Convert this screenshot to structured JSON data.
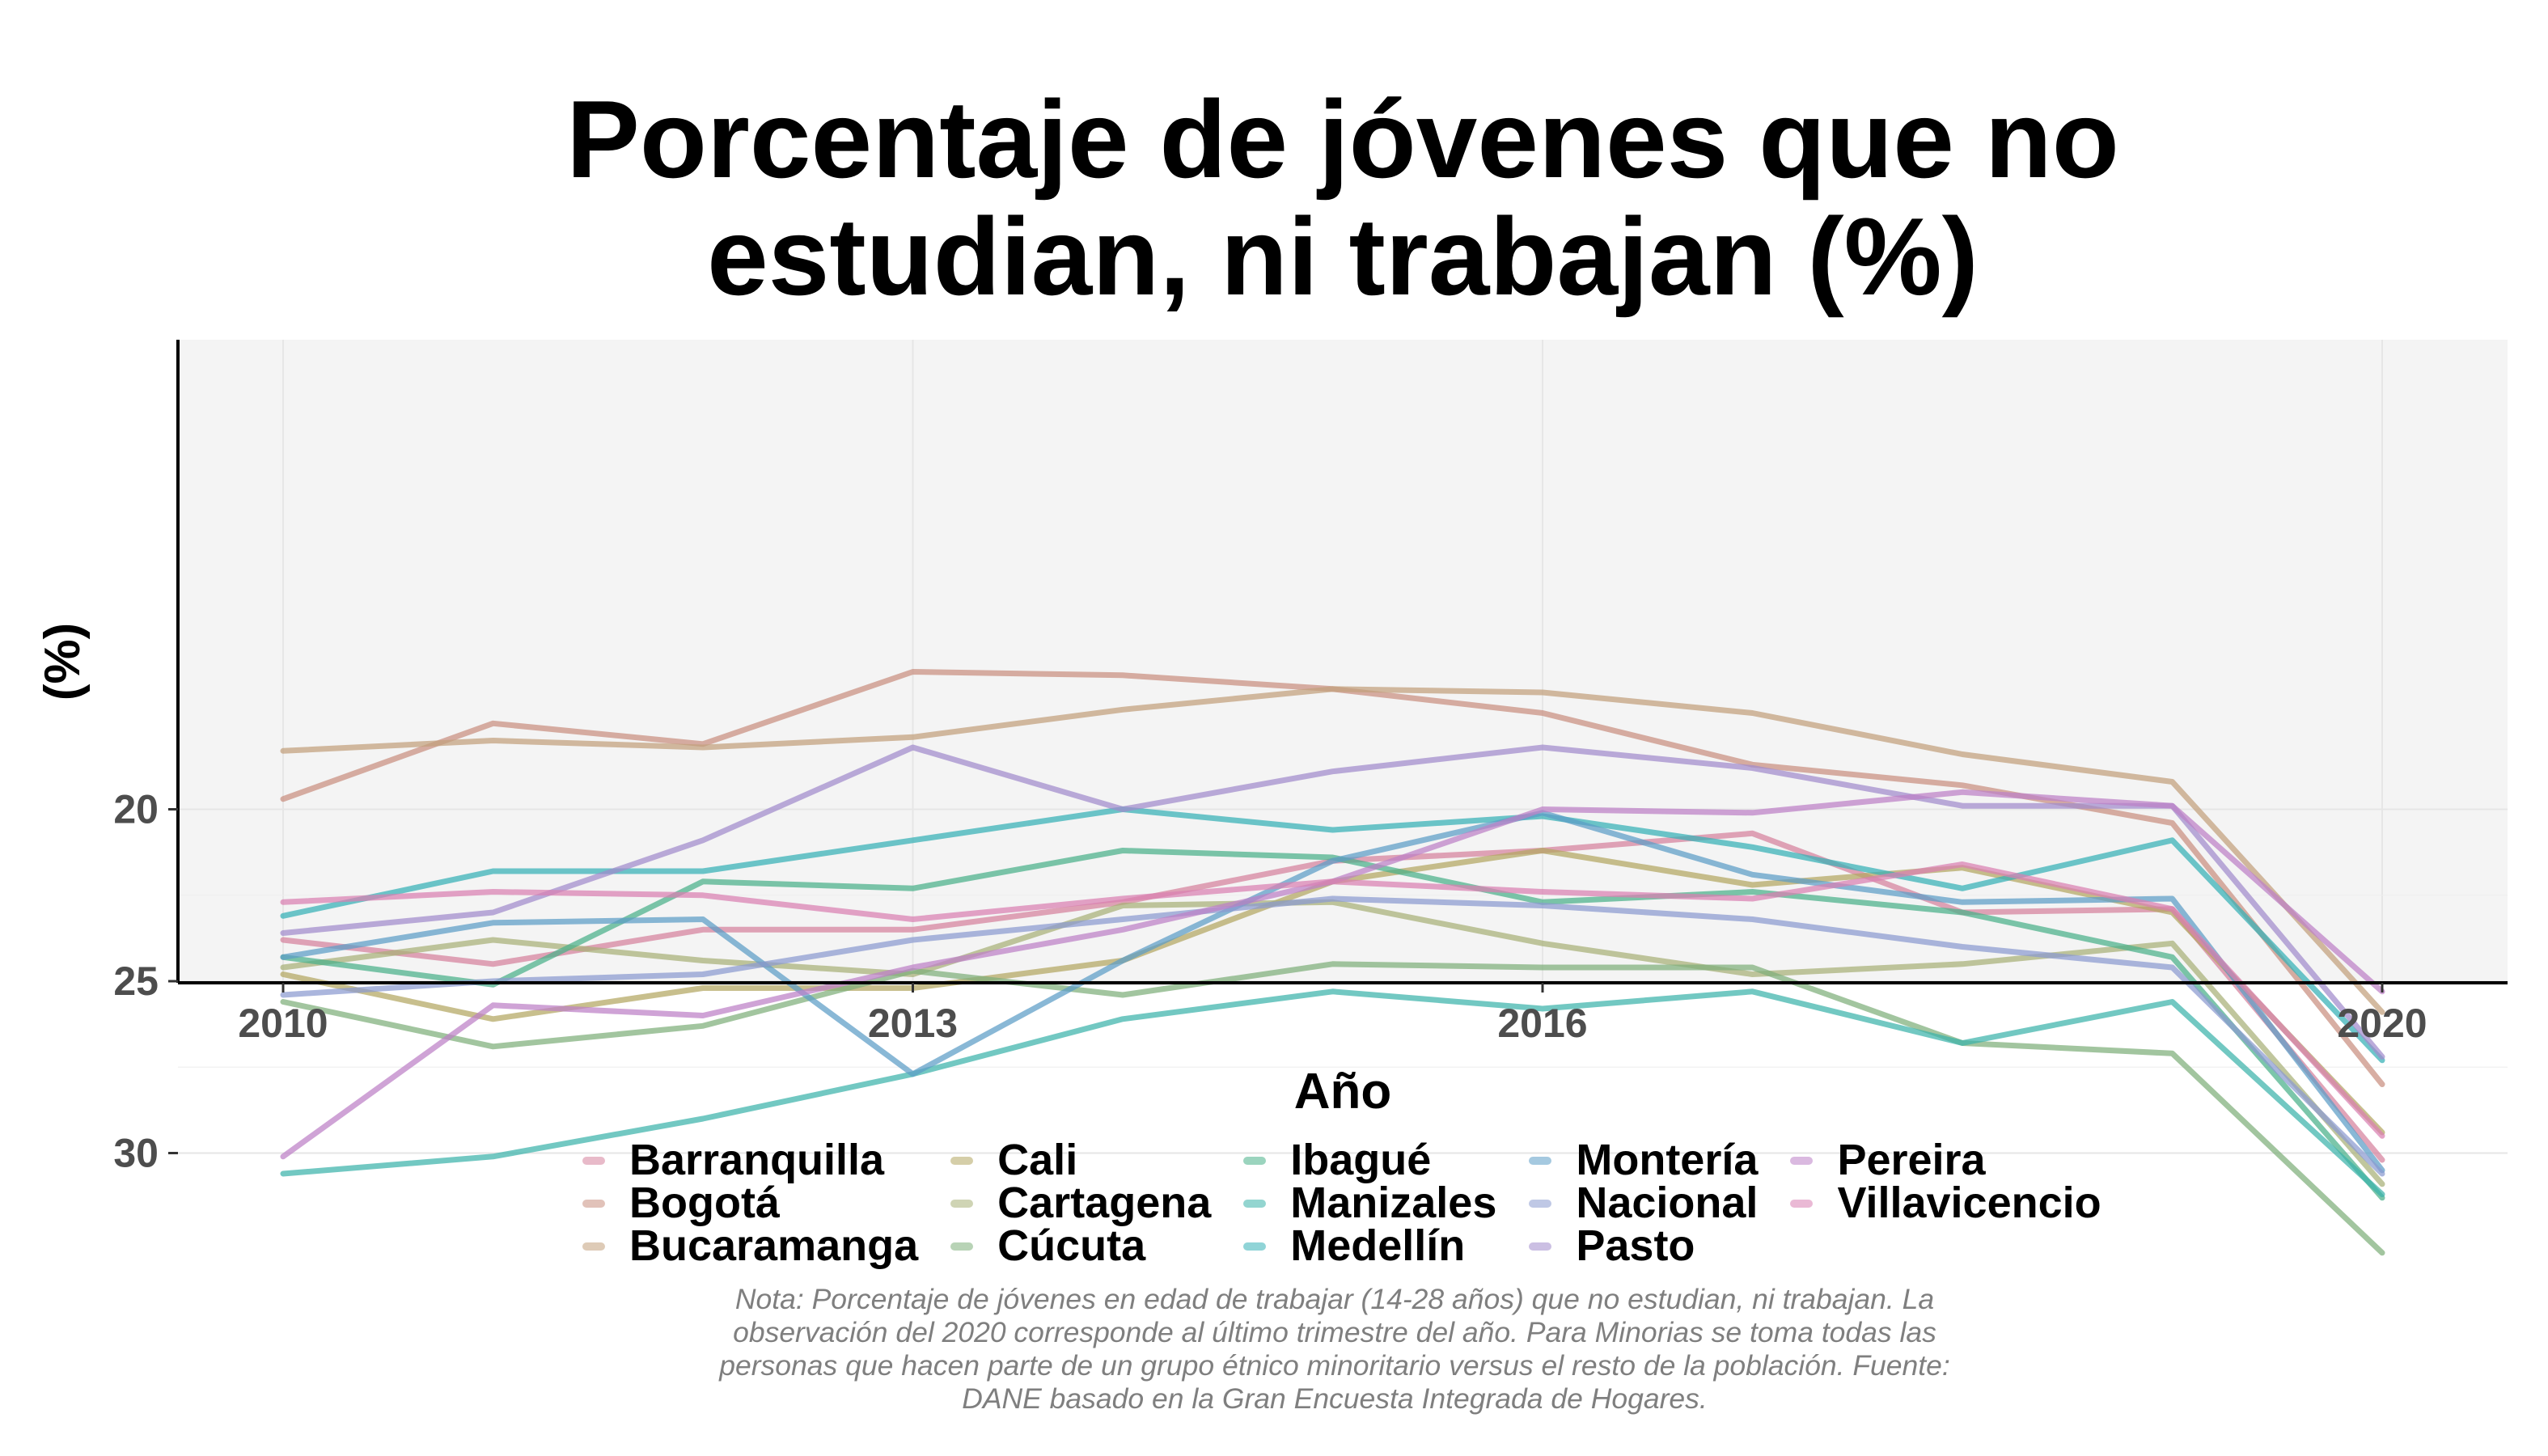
{
  "chart_data": {
    "type": "line",
    "title_lines": [
      "Porcentaje de jóvenes que no",
      "estudian, ni trabajan (%)"
    ],
    "xlabel": "Año",
    "ylabel": "(%)",
    "x": [
      2010,
      2011,
      2012,
      2013,
      2014,
      2015,
      2016,
      2017,
      2018,
      2019,
      2020
    ],
    "x_ticks": [
      2010,
      2013,
      2016,
      2020
    ],
    "y_ticks": [
      20,
      25,
      30
    ],
    "xlim": [
      2009.5,
      2020.5
    ],
    "ylim": [
      15.3,
      33.9
    ],
    "grid": true,
    "legend_position": "bottom",
    "series": [
      {
        "name": "Barranquilla",
        "color": "#D6819C",
        "values": [
          23.8,
          24.5,
          23.5,
          23.5,
          22.7,
          21.5,
          21.2,
          20.7,
          23.0,
          22.9,
          30.2
        ]
      },
      {
        "name": "Bogotá",
        "color": "#C98F80",
        "values": [
          19.7,
          17.5,
          18.1,
          16.0,
          16.1,
          16.5,
          17.2,
          18.7,
          19.3,
          20.4,
          28.0
        ]
      },
      {
        "name": "Bucaramanga",
        "color": "#C2A07C",
        "values": [
          18.3,
          18.0,
          18.2,
          17.9,
          17.1,
          16.5,
          16.6,
          17.2,
          18.4,
          19.2,
          25.9
        ]
      },
      {
        "name": "Cali",
        "color": "#B3A661",
        "values": [
          24.8,
          26.1,
          25.2,
          25.2,
          24.4,
          22.1,
          21.2,
          22.2,
          21.7,
          23.0,
          29.4
        ]
      },
      {
        "name": "Cartagena",
        "color": "#A8B077",
        "values": [
          24.6,
          23.8,
          24.4,
          24.8,
          22.8,
          22.7,
          23.9,
          24.8,
          24.5,
          23.9,
          30.9
        ]
      },
      {
        "name": "Cúcuta",
        "color": "#7EAF7A",
        "values": [
          25.6,
          26.9,
          26.3,
          24.7,
          25.4,
          24.5,
          24.6,
          24.6,
          26.8,
          27.1,
          32.9
        ]
      },
      {
        "name": "Ibagué",
        "color": "#49B089",
        "values": [
          24.3,
          25.1,
          22.1,
          22.3,
          21.2,
          21.4,
          22.7,
          22.4,
          23.0,
          24.3,
          31.3
        ]
      },
      {
        "name": "Manizales",
        "color": "#3BB3AA",
        "values": [
          30.6,
          30.1,
          29.0,
          27.7,
          26.1,
          25.3,
          25.8,
          25.3,
          26.8,
          25.6,
          31.2
        ]
      },
      {
        "name": "Medellín",
        "color": "#35B0B6",
        "values": [
          23.1,
          21.8,
          21.8,
          20.9,
          20.0,
          20.6,
          20.2,
          21.1,
          22.3,
          20.9,
          27.3
        ]
      },
      {
        "name": "Montería",
        "color": "#5B9DC6",
        "values": [
          24.3,
          23.3,
          23.2,
          27.7,
          24.4,
          21.5,
          20.1,
          21.9,
          22.7,
          22.6,
          30.5
        ]
      },
      {
        "name": "Nacional",
        "color": "#8A9AD0",
        "values": [
          25.4,
          25.0,
          24.8,
          23.8,
          23.2,
          22.6,
          22.8,
          23.2,
          24.0,
          24.6,
          30.6
        ]
      },
      {
        "name": "Pasto",
        "color": "#A18ACC",
        "values": [
          23.6,
          23.0,
          20.9,
          18.2,
          20.0,
          18.9,
          18.2,
          18.8,
          19.9,
          19.9,
          27.2
        ]
      },
      {
        "name": "Pereira",
        "color": "#BC80C6",
        "values": [
          30.1,
          25.7,
          26.0,
          24.6,
          23.5,
          22.1,
          20.0,
          20.1,
          19.5,
          19.9,
          25.3
        ]
      },
      {
        "name": "Villavicencio",
        "color": "#D97FB2",
        "values": [
          22.7,
          22.4,
          22.5,
          23.2,
          22.6,
          22.1,
          22.4,
          22.6,
          21.6,
          22.9,
          29.5
        ]
      }
    ],
    "note": "Nota: Porcentaje de jóvenes en edad de trabajar (14-28 años) que no estudian, ni trabajan. La observación del 2020 corresponde al último trimestre del año. Para Minorias se toma todas las personas que hacen parte de un grupo étnico minoritario versus el resto de la población. Fuente: DANE basado en la Gran Encuesta Integrada de Hogares.",
    "note_lines": [
      "Nota: Porcentaje de jóvenes en edad de trabajar (14-28 años) que no estudian, ni trabajan. La",
      "observación del 2020 corresponde al último trimestre del año. Para Minorias se toma todas las",
      "personas que hacen parte de un grupo étnico minoritario versus el resto de la población. Fuente:",
      "DANE basado en la Gran Encuesta Integrada de Hogares."
    ]
  }
}
